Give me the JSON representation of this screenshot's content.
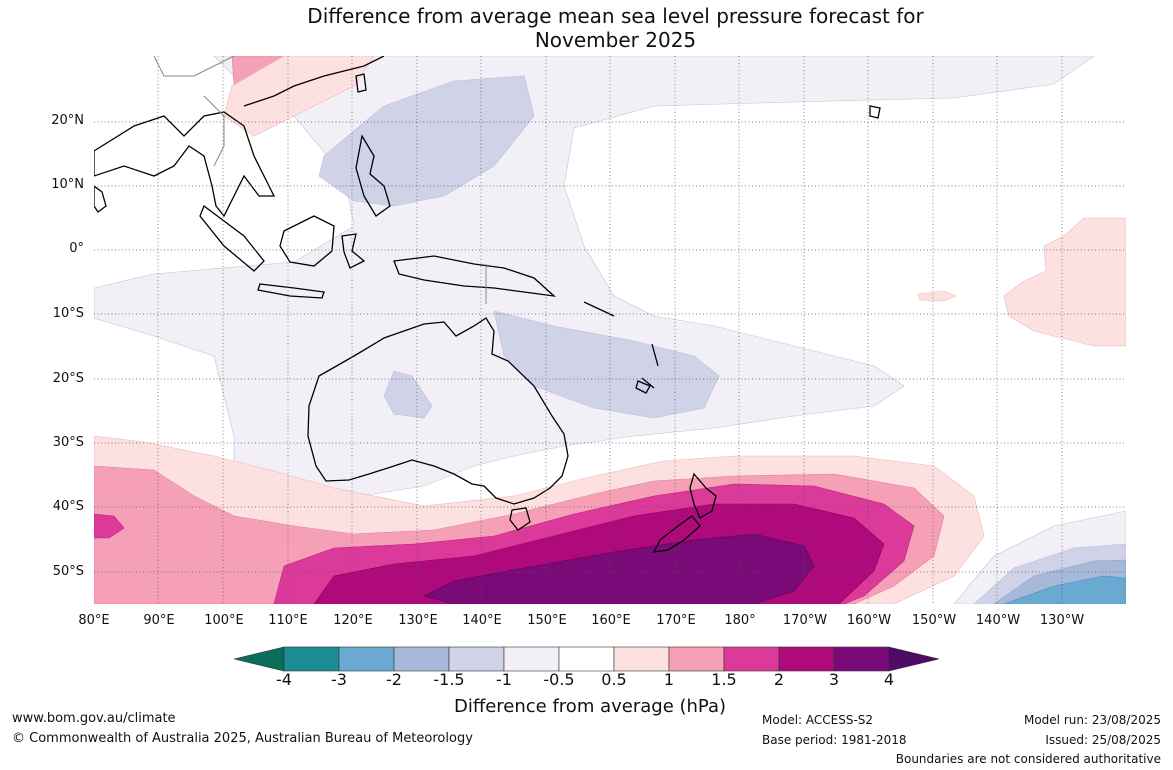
{
  "title_line1": "Difference from average mean sea level pressure forecast for",
  "title_line2": "November 2025",
  "map": {
    "latitude_labels": [
      "20°N",
      "10°N",
      "0°",
      "10°S",
      "20°S",
      "30°S",
      "40°S",
      "50°S"
    ],
    "longitude_labels": [
      "80°E",
      "90°E",
      "100°E",
      "110°E",
      "120°E",
      "130°E",
      "140°E",
      "150°E",
      "160°E",
      "170°E",
      "180°",
      "170°W",
      "160°W",
      "150°W",
      "140°W",
      "130°W"
    ],
    "colors": {
      "coast": "#000000",
      "borders": "#888888",
      "graticule": "#555555"
    }
  },
  "colorbar": {
    "tick_labels": [
      "-4",
      "-3",
      "-2",
      "-1.5",
      "-1",
      "-0.5",
      "0.5",
      "1",
      "1.5",
      "2",
      "3",
      "4"
    ],
    "colors": [
      "#0b6e5a",
      "#1a8e93",
      "#6aaad2",
      "#a7b9d8",
      "#d0d3e7",
      "#f3eff7",
      "#ffffff",
      "#fde0e0",
      "#f6a0b8",
      "#dc3a9a",
      "#ae0a7c",
      "#7a0a78",
      "#4e0a66"
    ],
    "label": "Difference from average (hPa)"
  },
  "footer": {
    "website": "www.bom.gov.au/climate",
    "copyright": "© Commonwealth of Australia 2025, Australian Bureau of Meteorology",
    "model": "Model: ACCESS-S2",
    "base_period": "Base period: 1981-2018",
    "model_run": "Model run: 23/08/2025",
    "issued": "Issued: 25/08/2025",
    "disclaimer": "Boundaries are not considered authoritative"
  }
}
